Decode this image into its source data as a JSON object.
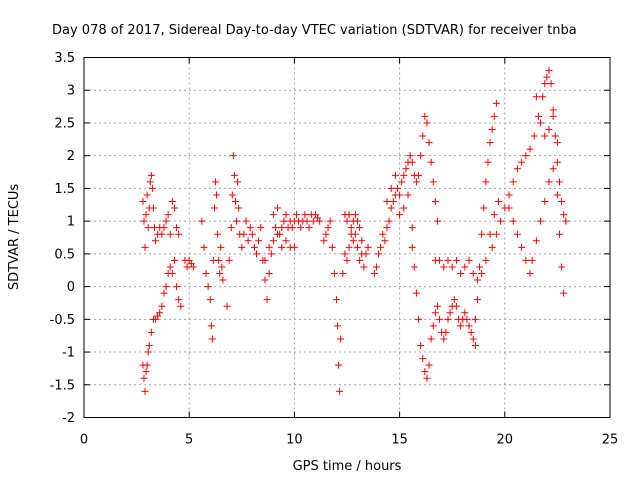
{
  "chart_data": {
    "type": "scatter",
    "title": "Day 078 of 2017, Sidereal Day-to-day VTEC variation (SDTVAR) for receiver tnba",
    "xlabel": "GPS time / hours",
    "ylabel": "SDTVAR / TECUs",
    "xlim": [
      0,
      25
    ],
    "ylim": [
      -2,
      3.5
    ],
    "grid": true,
    "marker": "plus",
    "color": "#ff0000",
    "xticks": [
      0,
      5,
      10,
      15,
      20,
      25
    ],
    "xtick_labels": [
      "0",
      "5",
      "10",
      "15",
      "20",
      "25"
    ],
    "yticks": [
      -2,
      -1.5,
      -1,
      -0.5,
      0,
      0.5,
      1,
      1.5,
      2,
      2.5,
      3,
      3.5
    ],
    "ytick_labels": [
      "-2",
      "-1.5",
      "-1",
      "-0.5",
      "0",
      "0.5",
      "1",
      "1.5",
      "2",
      "2.5",
      "3",
      "3.5"
    ],
    "series": [
      {
        "name": "SDTVAR",
        "points": [
          [
            2.8,
            1.3
          ],
          [
            2.85,
            1.0
          ],
          [
            2.9,
            0.6
          ],
          [
            2.95,
            1.1
          ],
          [
            3.0,
            1.4
          ],
          [
            3.05,
            0.9
          ],
          [
            3.1,
            1.2
          ],
          [
            3.15,
            1.6
          ],
          [
            3.2,
            1.7
          ],
          [
            3.25,
            1.5
          ],
          [
            3.3,
            1.2
          ],
          [
            3.35,
            0.9
          ],
          [
            3.4,
            0.7
          ],
          [
            3.5,
            0.8
          ],
          [
            3.6,
            0.9
          ],
          [
            3.7,
            0.8
          ],
          [
            3.8,
            0.9
          ],
          [
            3.9,
            1.0
          ],
          [
            4.0,
            1.1
          ],
          [
            4.1,
            0.8
          ],
          [
            4.2,
            1.3
          ],
          [
            4.3,
            1.2
          ],
          [
            4.4,
            0.9
          ],
          [
            4.5,
            0.8
          ],
          [
            2.8,
            -1.2
          ],
          [
            2.85,
            -1.4
          ],
          [
            2.9,
            -1.6
          ],
          [
            2.95,
            -1.3
          ],
          [
            3.0,
            -1.2
          ],
          [
            3.05,
            -1.0
          ],
          [
            3.1,
            -0.9
          ],
          [
            3.2,
            -0.7
          ],
          [
            3.3,
            -0.5
          ],
          [
            3.4,
            -0.5
          ],
          [
            3.5,
            -0.45
          ],
          [
            3.6,
            -0.4
          ],
          [
            3.7,
            -0.3
          ],
          [
            3.8,
            -0.1
          ],
          [
            3.9,
            0.0
          ],
          [
            4.0,
            0.2
          ],
          [
            4.1,
            0.3
          ],
          [
            4.2,
            0.2
          ],
          [
            4.3,
            0.4
          ],
          [
            4.4,
            0.0
          ],
          [
            4.5,
            -0.2
          ],
          [
            4.6,
            -0.3
          ],
          [
            4.8,
            0.4
          ],
          [
            4.9,
            0.3
          ],
          [
            5.0,
            0.4
          ],
          [
            5.1,
            0.35
          ],
          [
            5.2,
            0.3
          ],
          [
            5.6,
            1.0
          ],
          [
            5.7,
            0.6
          ],
          [
            5.8,
            0.2
          ],
          [
            5.9,
            0.0
          ],
          [
            6.0,
            -0.2
          ],
          [
            6.05,
            -0.6
          ],
          [
            6.1,
            -0.8
          ],
          [
            6.15,
            0.4
          ],
          [
            6.2,
            1.2
          ],
          [
            6.25,
            1.6
          ],
          [
            6.3,
            1.4
          ],
          [
            6.35,
            0.8
          ],
          [
            6.4,
            0.4
          ],
          [
            6.45,
            0.2
          ],
          [
            6.5,
            0.6
          ],
          [
            6.55,
            0.3
          ],
          [
            6.6,
            0.1
          ],
          [
            6.8,
            -0.3
          ],
          [
            6.9,
            0.4
          ],
          [
            7.0,
            0.9
          ],
          [
            7.05,
            1.4
          ],
          [
            7.1,
            2.0
          ],
          [
            7.15,
            1.7
          ],
          [
            7.2,
            1.3
          ],
          [
            7.25,
            1.0
          ],
          [
            7.3,
            1.6
          ],
          [
            7.35,
            1.2
          ],
          [
            7.4,
            0.8
          ],
          [
            7.5,
            0.6
          ],
          [
            7.6,
            0.8
          ],
          [
            7.7,
            1.0
          ],
          [
            7.8,
            0.7
          ],
          [
            7.9,
            0.9
          ],
          [
            8.0,
            0.8
          ],
          [
            8.1,
            0.6
          ],
          [
            8.2,
            0.5
          ],
          [
            8.3,
            0.7
          ],
          [
            8.4,
            0.9
          ],
          [
            8.5,
            0.4
          ],
          [
            8.6,
            0.1
          ],
          [
            8.7,
            -0.2
          ],
          [
            8.8,
            0.2
          ],
          [
            8.9,
            0.5
          ],
          [
            9.0,
            1.1
          ],
          [
            9.1,
            0.9
          ],
          [
            9.2,
            1.2
          ],
          [
            9.3,
            0.8
          ],
          [
            9.4,
            0.9
          ],
          [
            9.5,
            1.0
          ],
          [
            9.6,
            1.1
          ],
          [
            9.7,
            0.9
          ],
          [
            9.8,
            1.0
          ],
          [
            9.9,
            0.9
          ],
          [
            10.0,
            1.0
          ],
          [
            10.1,
            1.1
          ],
          [
            10.2,
            1.0
          ],
          [
            10.3,
            0.9
          ],
          [
            10.4,
            1.0
          ],
          [
            10.5,
            1.1
          ],
          [
            10.6,
            1.0
          ],
          [
            10.7,
            0.9
          ],
          [
            10.8,
            1.1
          ],
          [
            10.9,
            1.0
          ],
          [
            11.0,
            1.1
          ],
          [
            11.1,
            1.05
          ],
          [
            11.2,
            1.0
          ],
          [
            8.6,
            0.4
          ],
          [
            8.8,
            0.6
          ],
          [
            9.0,
            0.7
          ],
          [
            9.2,
            0.8
          ],
          [
            9.4,
            0.6
          ],
          [
            9.6,
            0.7
          ],
          [
            9.8,
            0.6
          ],
          [
            10.0,
            0.6
          ],
          [
            11.4,
            0.7
          ],
          [
            11.5,
            0.8
          ],
          [
            11.6,
            0.9
          ],
          [
            11.7,
            1.0
          ],
          [
            11.8,
            0.6
          ],
          [
            11.9,
            0.2
          ],
          [
            12.0,
            -0.2
          ],
          [
            12.05,
            -0.6
          ],
          [
            12.1,
            -1.2
          ],
          [
            12.15,
            -1.6
          ],
          [
            12.2,
            -0.8
          ],
          [
            12.3,
            0.2
          ],
          [
            12.4,
            0.5
          ],
          [
            12.5,
            0.4
          ],
          [
            12.6,
            0.6
          ],
          [
            12.7,
            0.8
          ],
          [
            12.8,
            0.7
          ],
          [
            12.9,
            0.8
          ],
          [
            13.0,
            0.6
          ],
          [
            13.1,
            0.4
          ],
          [
            13.2,
            0.5
          ],
          [
            13.3,
            0.3
          ],
          [
            13.4,
            0.5
          ],
          [
            13.5,
            0.6
          ],
          [
            12.4,
            1.1
          ],
          [
            12.5,
            1.0
          ],
          [
            12.6,
            1.1
          ],
          [
            12.7,
            0.9
          ],
          [
            12.8,
            1.0
          ],
          [
            12.9,
            1.1
          ],
          [
            13.0,
            1.0
          ],
          [
            13.1,
            0.9
          ],
          [
            13.2,
            0.7
          ],
          [
            13.8,
            0.2
          ],
          [
            13.9,
            0.3
          ],
          [
            14.0,
            0.5
          ],
          [
            14.1,
            0.6
          ],
          [
            14.2,
            0.8
          ],
          [
            14.3,
            0.7
          ],
          [
            14.4,
            0.9
          ],
          [
            14.5,
            1.0
          ],
          [
            14.6,
            1.2
          ],
          [
            14.7,
            1.3
          ],
          [
            14.8,
            1.4
          ],
          [
            14.9,
            1.5
          ],
          [
            15.0,
            1.4
          ],
          [
            15.1,
            1.6
          ],
          [
            15.2,
            1.7
          ],
          [
            15.3,
            1.8
          ],
          [
            15.4,
            1.9
          ],
          [
            15.5,
            2.0
          ],
          [
            15.6,
            1.9
          ],
          [
            15.7,
            1.7
          ],
          [
            15.8,
            1.6
          ],
          [
            15.9,
            1.7
          ],
          [
            16.0,
            2.0
          ],
          [
            16.1,
            2.3
          ],
          [
            16.2,
            2.6
          ],
          [
            16.3,
            2.5
          ],
          [
            16.4,
            2.2
          ],
          [
            16.5,
            1.9
          ],
          [
            16.6,
            1.6
          ],
          [
            16.7,
            1.3
          ],
          [
            16.8,
            1.0
          ],
          [
            14.4,
            1.3
          ],
          [
            14.6,
            1.5
          ],
          [
            14.8,
            1.7
          ],
          [
            15.0,
            1.1
          ],
          [
            15.2,
            1.2
          ],
          [
            15.4,
            1.4
          ],
          [
            15.6,
            0.9
          ],
          [
            15.6,
            0.6
          ],
          [
            15.7,
            0.3
          ],
          [
            15.8,
            -0.1
          ],
          [
            15.9,
            -0.5
          ],
          [
            16.0,
            -0.9
          ],
          [
            16.1,
            -1.1
          ],
          [
            16.2,
            -1.3
          ],
          [
            16.3,
            -1.4
          ],
          [
            16.4,
            -1.2
          ],
          [
            16.5,
            -0.8
          ],
          [
            16.6,
            -0.6
          ],
          [
            16.7,
            -0.4
          ],
          [
            16.8,
            -0.3
          ],
          [
            16.9,
            -0.5
          ],
          [
            17.0,
            -0.7
          ],
          [
            17.1,
            -0.8
          ],
          [
            17.2,
            -0.7
          ],
          [
            17.3,
            -0.5
          ],
          [
            17.4,
            -0.4
          ],
          [
            17.5,
            -0.3
          ],
          [
            17.6,
            -0.2
          ],
          [
            17.7,
            -0.3
          ],
          [
            17.8,
            -0.5
          ],
          [
            17.9,
            -0.6
          ],
          [
            18.0,
            -0.5
          ],
          [
            18.1,
            -0.4
          ],
          [
            18.2,
            -0.5
          ],
          [
            18.3,
            -0.6
          ],
          [
            18.4,
            -0.7
          ],
          [
            18.5,
            -0.8
          ],
          [
            18.6,
            -0.9
          ],
          [
            16.7,
            0.4
          ],
          [
            16.9,
            0.4
          ],
          [
            17.1,
            0.3
          ],
          [
            17.3,
            0.4
          ],
          [
            17.5,
            0.3
          ],
          [
            17.7,
            0.4
          ],
          [
            17.9,
            0.2
          ],
          [
            18.1,
            0.3
          ],
          [
            18.3,
            0.4
          ],
          [
            18.5,
            0.2
          ],
          [
            18.7,
            0.1
          ],
          [
            18.9,
            0.2
          ],
          [
            19.1,
            0.4
          ],
          [
            19.3,
            0.8
          ],
          [
            19.5,
            1.1
          ],
          [
            19.7,
            1.3
          ],
          [
            18.6,
            -0.5
          ],
          [
            18.7,
            -0.2
          ],
          [
            18.8,
            0.3
          ],
          [
            18.9,
            0.8
          ],
          [
            19.0,
            1.2
          ],
          [
            19.1,
            1.6
          ],
          [
            19.2,
            1.9
          ],
          [
            19.3,
            2.2
          ],
          [
            19.4,
            2.4
          ],
          [
            19.5,
            2.6
          ],
          [
            19.6,
            2.8
          ],
          [
            19.4,
            0.6
          ],
          [
            19.6,
            0.8
          ],
          [
            19.8,
            1.0
          ],
          [
            20.0,
            1.2
          ],
          [
            20.2,
            1.4
          ],
          [
            20.4,
            1.6
          ],
          [
            20.6,
            1.8
          ],
          [
            20.8,
            1.9
          ],
          [
            21.0,
            2.0
          ],
          [
            21.2,
            2.1
          ],
          [
            21.4,
            2.3
          ],
          [
            21.6,
            2.6
          ],
          [
            21.8,
            2.9
          ],
          [
            21.9,
            3.1
          ],
          [
            22.0,
            3.2
          ],
          [
            22.1,
            3.3
          ],
          [
            22.2,
            3.1
          ],
          [
            22.3,
            2.7
          ],
          [
            22.4,
            2.3
          ],
          [
            22.5,
            1.9
          ],
          [
            22.6,
            1.6
          ],
          [
            22.7,
            1.3
          ],
          [
            22.8,
            1.1
          ],
          [
            22.9,
            1.0
          ],
          [
            20.2,
            1.2
          ],
          [
            20.4,
            1.0
          ],
          [
            20.6,
            0.8
          ],
          [
            20.8,
            0.6
          ],
          [
            21.0,
            0.4
          ],
          [
            21.2,
            0.2
          ],
          [
            21.3,
            0.4
          ],
          [
            21.5,
            0.7
          ],
          [
            21.7,
            1.0
          ],
          [
            21.9,
            1.3
          ],
          [
            22.1,
            1.6
          ],
          [
            22.3,
            1.8
          ],
          [
            22.5,
            1.4
          ],
          [
            22.6,
            0.8
          ],
          [
            22.7,
            0.3
          ],
          [
            22.8,
            -0.1
          ],
          [
            21.5,
            2.9
          ],
          [
            21.7,
            2.5
          ],
          [
            21.9,
            2.3
          ],
          [
            22.1,
            2.4
          ],
          [
            22.3,
            2.6
          ],
          [
            22.5,
            2.2
          ]
        ]
      }
    ]
  }
}
